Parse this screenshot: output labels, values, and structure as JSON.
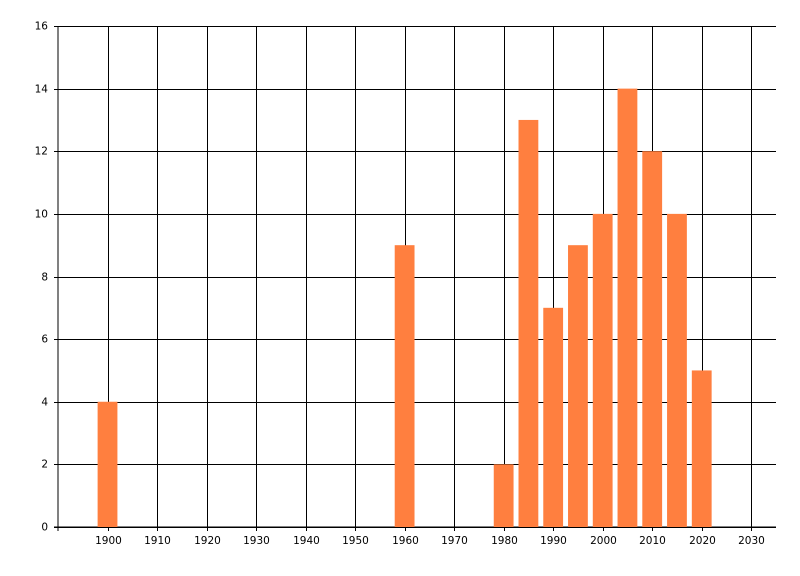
{
  "chart_data": {
    "type": "bar",
    "x": [
      1900,
      1960,
      1980,
      1985,
      1990,
      1995,
      2000,
      2005,
      2010,
      2015,
      2020
    ],
    "values": [
      4,
      9,
      2,
      13,
      7,
      9,
      10,
      14,
      12,
      10,
      5
    ],
    "color": "#ff7f3f",
    "xlim": [
      1890,
      2035
    ],
    "xticks": [
      1900,
      1910,
      1920,
      1930,
      1940,
      1950,
      1960,
      1970,
      1980,
      1990,
      2000,
      2010,
      2020,
      2030
    ],
    "ylim": [
      0,
      16
    ],
    "yticks": [
      0,
      2,
      4,
      6,
      8,
      10,
      12,
      14,
      16
    ],
    "grid": true
  }
}
